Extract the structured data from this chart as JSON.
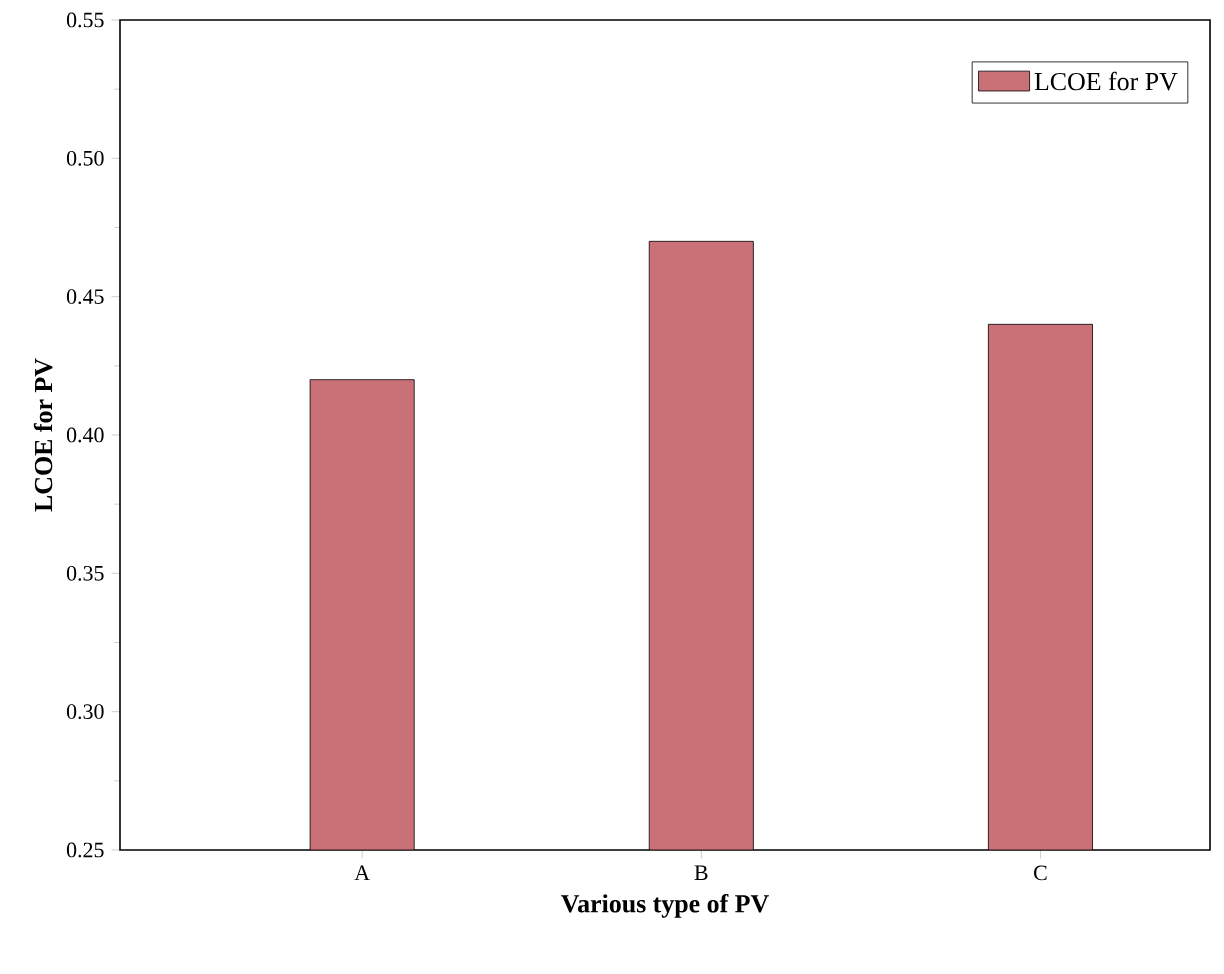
{
  "chart_data": {
    "type": "bar",
    "xlabel": "Various type of PV",
    "ylabel": "LCOE for PV",
    "categories": [
      "A",
      "B",
      "C"
    ],
    "series": [
      {
        "name": "LCOE for PV",
        "color": "#ca7178",
        "values": [
          0.42,
          0.47,
          0.44
        ]
      }
    ],
    "ylim": [
      0.25,
      0.55
    ],
    "yticks": [
      {
        "value": 0.25,
        "label": "0.25"
      },
      {
        "value": 0.3,
        "label": "0.30"
      },
      {
        "value": 0.35,
        "label": "0.35"
      },
      {
        "value": 0.4,
        "label": "0.40"
      },
      {
        "value": 0.45,
        "label": "0.45"
      },
      {
        "value": 0.5,
        "label": "0.50"
      },
      {
        "value": 0.55,
        "label": "0.55"
      }
    ],
    "legend": "top right"
  }
}
